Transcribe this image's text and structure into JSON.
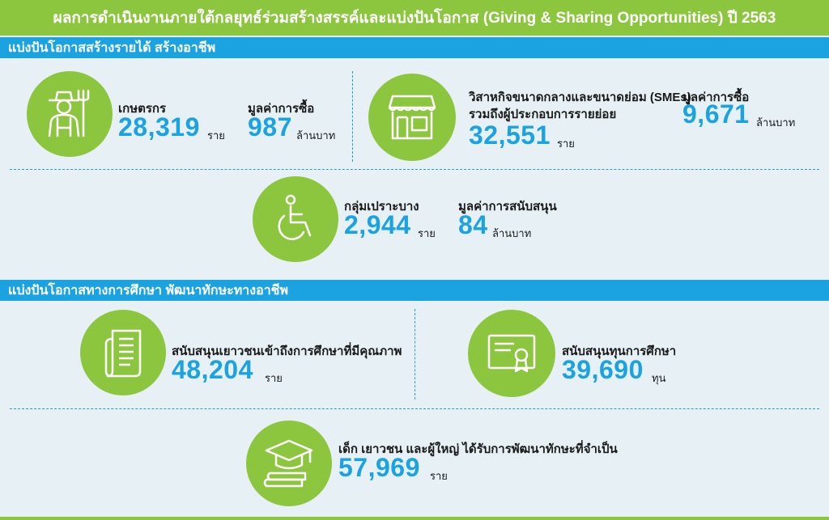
{
  "header": {
    "title": "ผลการดำเนินงานภายใต้กลยุทธ์ร่วมสร้างสรรค์และแบ่งปันโอกาส (Giving & Sharing Opportunities) ปี 2563"
  },
  "section1": {
    "title": "แบ่งปันโอกาสสร้างรายได้ สร้างอาชีพ",
    "farmers": {
      "icon": "farmer-icon",
      "label": "เกษตรกร",
      "count": "28,319",
      "count_unit": "ราย",
      "value_label": "มูลค่าการซื้อ",
      "value": "987",
      "value_unit": "ล้านบาท"
    },
    "smes": {
      "icon": "shop-icon",
      "label_line1": "วิสาหกิจขนาดกลางและขนาดย่อม (SMEs)",
      "label_line2": "รวมถึงผู้ประกอบการรายย่อย",
      "count": "32,551",
      "count_unit": "ราย",
      "value_label": "มูลค่าการซื้อ",
      "value": "9,671",
      "value_unit": "ล้านบาท"
    },
    "vulnerable": {
      "icon": "wheelchair-icon",
      "label": "กลุ่มเปราะบาง",
      "count": "2,944",
      "count_unit": "ราย",
      "value_label": "มูลค่าการสนับสนุน",
      "value": "84",
      "value_unit": "ล้านบาท"
    }
  },
  "section2": {
    "title": "แบ่งปันโอกาสทางการศึกษา พัฒนาทักษะทางอาชีพ",
    "education_access": {
      "icon": "document-icon",
      "label": "สนับสนุนเยาวชนเข้าถึงการศึกษาที่มีคุณภาพ",
      "count": "48,204",
      "count_unit": "ราย"
    },
    "scholarships": {
      "icon": "certificate-icon",
      "label": "สนับสนุนทุนการศึกษา",
      "count": "39,690",
      "count_unit": "ทุน"
    },
    "skills": {
      "icon": "graduation-cap-icon",
      "label": "เด็ก เยาวชน และผู้ใหญ่ ได้รับการพัฒนาทักษะที่จำเป็น",
      "count": "57,969",
      "count_unit": "ราย"
    }
  },
  "colors": {
    "green": "#8cc63f",
    "blue": "#1aa3e0",
    "background": "#e6f0f5"
  }
}
